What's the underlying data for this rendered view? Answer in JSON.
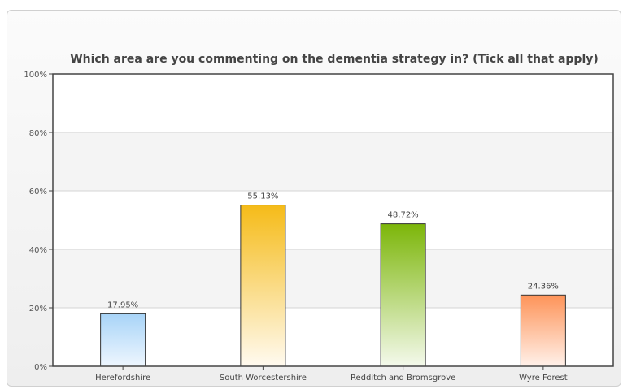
{
  "chart_data": {
    "type": "bar",
    "title": "Which area are you commenting on the dementia strategy in? (Tick all that apply)",
    "xlabel": "",
    "ylabel": "",
    "categories": [
      "Herefordshire",
      "South Worcestershire",
      "Redditch and Bromsgrove",
      "Wyre Forest"
    ],
    "values": [
      17.95,
      55.13,
      48.72,
      24.36
    ],
    "value_labels": [
      "17.95%",
      "55.13%",
      "48.72%",
      "24.36%"
    ],
    "ylim": [
      0,
      100
    ],
    "yticks": [
      0,
      20,
      40,
      60,
      80,
      100
    ],
    "ytick_labels": [
      "0%",
      "20%",
      "40%",
      "60%",
      "80%",
      "100%"
    ],
    "grid": true,
    "legend": false,
    "bar_colors": [
      {
        "top": "#a8d4f8",
        "bottom": "#eef6fe"
      },
      {
        "top": "#f5bb18",
        "bottom": "#fffaf0"
      },
      {
        "top": "#7cb609",
        "bottom": "#f4f9ec"
      },
      {
        "top": "#fe9358",
        "bottom": "#fff1ea"
      }
    ]
  }
}
